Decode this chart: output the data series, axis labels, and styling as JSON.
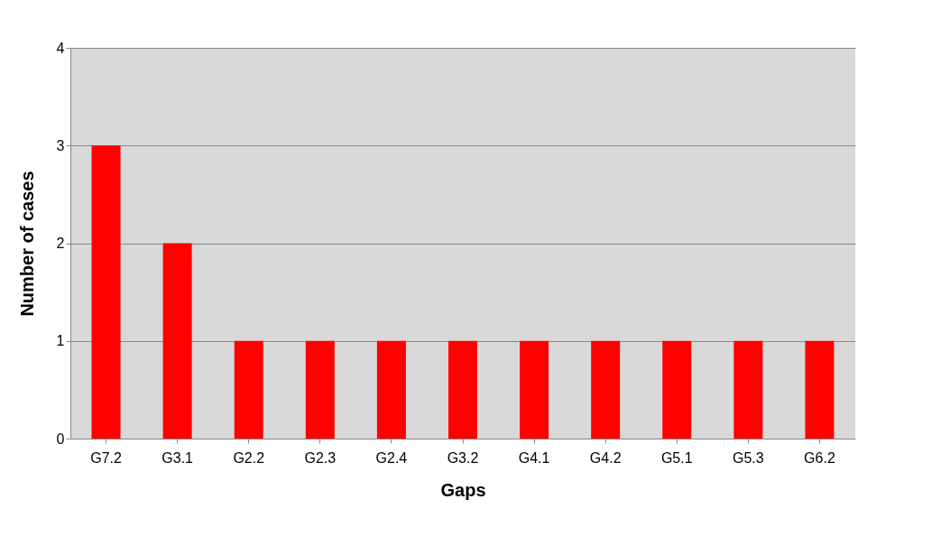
{
  "chart_data": {
    "type": "bar",
    "xlabel": "Gaps",
    "ylabel": "Number of cases",
    "categories": [
      "G7.2",
      "G3.1",
      "G2.2",
      "G2.3",
      "G2.4",
      "G3.2",
      "G4.1",
      "G4.2",
      "G5.1",
      "G5.3",
      "G6.2"
    ],
    "values": [
      3,
      2,
      1,
      1,
      1,
      1,
      1,
      1,
      1,
      1,
      1
    ],
    "color": "#ff0000",
    "ylim": [
      0,
      4
    ],
    "yticks": [
      0,
      1,
      2,
      3,
      4
    ],
    "grid": "y"
  }
}
